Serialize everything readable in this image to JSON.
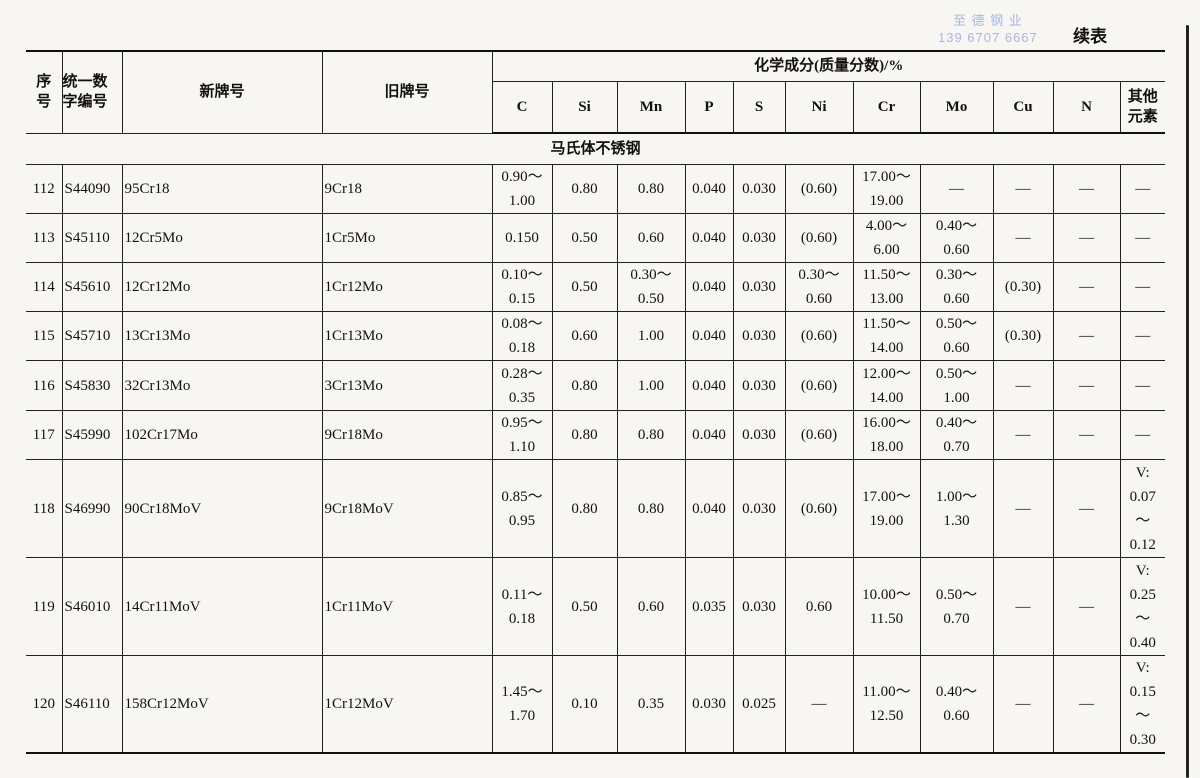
{
  "watermark": {
    "company": "至 德 钢 业",
    "phone": "139 6707 6667"
  },
  "continued_label": "续表",
  "headers": {
    "seq": "序\n号",
    "unified_code": "统一数\n字编号",
    "new_grade": "新牌号",
    "old_grade": "旧牌号",
    "chemical": "化学成分(质量分数)/%",
    "elements": [
      "C",
      "Si",
      "Mn",
      "P",
      "S",
      "Ni",
      "Cr",
      "Mo",
      "Cu",
      "N"
    ],
    "other": "其他\n元素"
  },
  "section_title": "马氏体不锈钢",
  "rows": [
    [
      "112",
      "S44090",
      "95Cr18",
      "9Cr18",
      "0.90～\n1.00",
      "0.80",
      "0.80",
      "0.040",
      "0.030",
      "(0.60)",
      "17.00～\n19.00",
      "—",
      "—",
      "—",
      "—"
    ],
    [
      "113",
      "S45110",
      "12Cr5Mo",
      "1Cr5Mo",
      "0.150",
      "0.50",
      "0.60",
      "0.040",
      "0.030",
      "(0.60)",
      "4.00～\n6.00",
      "0.40～\n0.60",
      "—",
      "—",
      "—"
    ],
    [
      "114",
      "S45610",
      "12Cr12Mo",
      "1Cr12Mo",
      "0.10～\n0.15",
      "0.50",
      "0.30～\n0.50",
      "0.040",
      "0.030",
      "0.30～\n0.60",
      "11.50～\n13.00",
      "0.30～\n0.60",
      "(0.30)",
      "—",
      "—"
    ],
    [
      "115",
      "S45710",
      "13Cr13Mo",
      "1Cr13Mo",
      "0.08～\n0.18",
      "0.60",
      "1.00",
      "0.040",
      "0.030",
      "(0.60)",
      "11.50～\n14.00",
      "0.50～\n0.60",
      "(0.30)",
      "—",
      "—"
    ],
    [
      "116",
      "S45830",
      "32Cr13Mo",
      "3Cr13Mo",
      "0.28～\n0.35",
      "0.80",
      "1.00",
      "0.040",
      "0.030",
      "(0.60)",
      "12.00～\n14.00",
      "0.50～\n1.00",
      "—",
      "—",
      "—"
    ],
    [
      "117",
      "S45990",
      "102Cr17Mo",
      "9Cr18Mo",
      "0.95～\n1.10",
      "0.80",
      "0.80",
      "0.040",
      "0.030",
      "(0.60)",
      "16.00～\n18.00",
      "0.40～\n0.70",
      "—",
      "—",
      "—"
    ],
    [
      "118",
      "S46990",
      "90Cr18MoV",
      "9Cr18MoV",
      "0.85～\n0.95",
      "0.80",
      "0.80",
      "0.040",
      "0.030",
      "(0.60)",
      "17.00～\n19.00",
      "1.00～\n1.30",
      "—",
      "—",
      "V:\n0.07\n～\n0.12"
    ],
    [
      "119",
      "S46010",
      "14Cr11MoV",
      "1Cr11MoV",
      "0.11～\n0.18",
      "0.50",
      "0.60",
      "0.035",
      "0.030",
      "0.60",
      "10.00～\n11.50",
      "0.50～\n0.70",
      "—",
      "—",
      "V:\n0.25\n～\n0.40"
    ],
    [
      "120",
      "S46110",
      "158Cr12MoV",
      "1Cr12MoV",
      "1.45～\n1.70",
      "0.10",
      "0.35",
      "0.030",
      "0.025",
      "—",
      "11.00～\n12.50",
      "0.40～\n0.60",
      "—",
      "—",
      "V:\n0.15\n～\n0.30"
    ]
  ]
}
